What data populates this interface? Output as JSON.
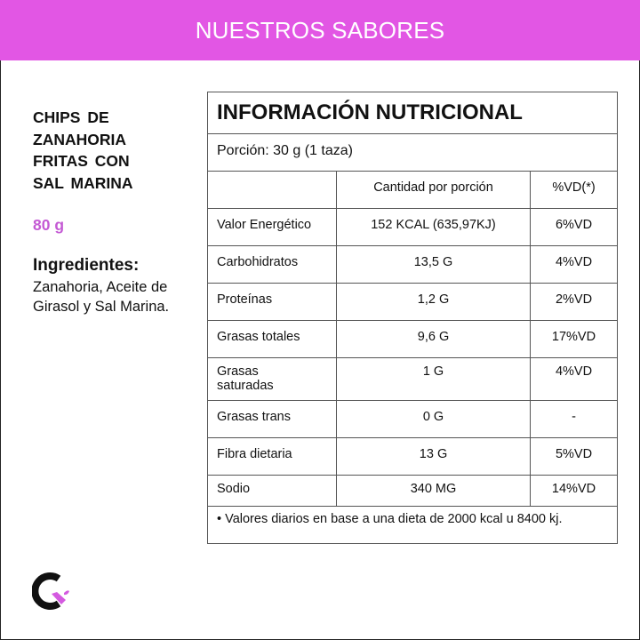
{
  "header": {
    "title": "NUESTROS SABORES"
  },
  "product": {
    "name": "CHIPS DE ZANAHORIA FRITAS CON SAL MARINA",
    "weight": "80 g",
    "ingredients_label": "Ingredientes:",
    "ingredients": "Zanahoria, Aceite de Girasol y Sal Marina."
  },
  "table": {
    "title": "INFORMACIÓN NUTRICIONAL",
    "portion": "Porción: 30 g (1 taza)",
    "columns": [
      "",
      "Cantidad por porción",
      "%VD(*)"
    ],
    "rows": [
      [
        "Valor Energético",
        "152 KCAL (635,97KJ)",
        "6%VD"
      ],
      [
        "Carbohidratos",
        "13,5 G",
        "4%VD"
      ],
      [
        "Proteínas",
        "1,2 G",
        "2%VD"
      ],
      [
        "Grasas totales",
        "9,6 G",
        "17%VD"
      ],
      [
        "Grasas saturadas",
        "1 G",
        "4%VD"
      ],
      [
        "Grasas trans",
        "0 G",
        "-"
      ],
      [
        "Fibra dietaria",
        "13 G",
        "5%VD"
      ],
      [
        "Sodio",
        "340 MG",
        "14%VD"
      ]
    ],
    "footnote": "•  Valores diarios en base a una dieta de 2000 kcal u 8400 kj."
  },
  "colors": {
    "accent": "#e256e4",
    "weight": "#c45ad4"
  },
  "logo": {
    "icon": "brand-logo"
  }
}
